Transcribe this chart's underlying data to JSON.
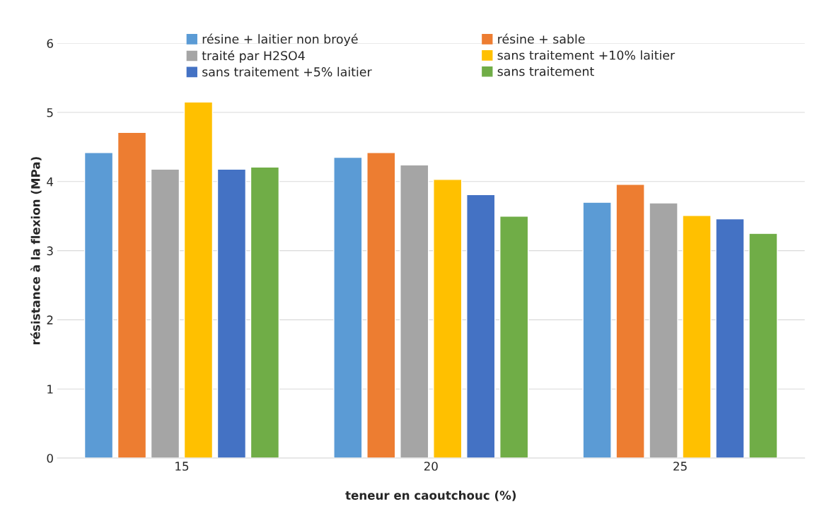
{
  "chart_data": {
    "type": "bar",
    "xlabel": "teneur en caoutchouc (%)",
    "ylabel": "résistance à la flexion (MPa)",
    "categories": [
      "15",
      "20",
      "25"
    ],
    "series": [
      {
        "name": "résine + laitier non broyé",
        "color": "#5b9bd5",
        "values": [
          4.42,
          4.35,
          3.7
        ]
      },
      {
        "name": "résine + sable",
        "color": "#ed7d31",
        "values": [
          4.71,
          4.42,
          3.96
        ]
      },
      {
        "name": "traité par H2SO4",
        "color": "#a5a5a5",
        "values": [
          4.18,
          4.24,
          3.69
        ]
      },
      {
        "name": "sans traitement +10% laitier",
        "color": "#ffc000",
        "values": [
          5.15,
          4.03,
          3.51
        ]
      },
      {
        "name": "sans traitement +5% laitier",
        "color": "#4472c4",
        "values": [
          4.18,
          3.81,
          3.46
        ]
      },
      {
        "name": "sans traitement",
        "color": "#70ad47",
        "values": [
          4.21,
          3.5,
          3.25
        ]
      }
    ],
    "ylim": [
      0,
      6
    ],
    "yticks": [
      0,
      1,
      2,
      3,
      4,
      5,
      6
    ],
    "grid": "y",
    "legend": "top"
  }
}
